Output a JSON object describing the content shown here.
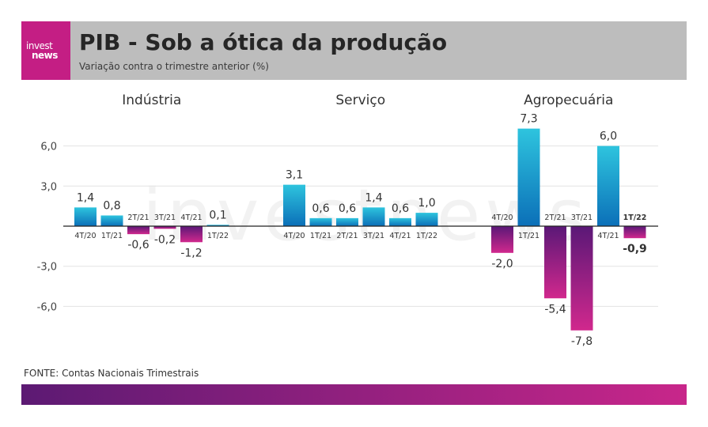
{
  "header": {
    "logo_line1": "invest",
    "logo_line2": "news",
    "title": "PIB - Sob a ótica da produção",
    "subtitle": "Variação contra o trimestre anterior (%)"
  },
  "watermark": "investnews",
  "source": "FONTE: Contas Nacionais Trimestrais",
  "colors": {
    "positive_top": "#2ec4de",
    "positive_bottom": "#0b6fb8",
    "negative_top": "#5a1877",
    "negative_bottom": "#d1288d"
  },
  "chart_data": {
    "type": "bar",
    "ylim": [
      -9,
      8
    ],
    "yticks": [
      6.0,
      3.0,
      -3.0,
      -6.0
    ],
    "ytick_labels": [
      "6,0",
      "3,0",
      "-3,0",
      "-6,0"
    ],
    "grid": true,
    "groups": [
      {
        "name": "Indústria",
        "categories": [
          "4T/20",
          "1T/21",
          "2T/21",
          "3T/21",
          "4T/21",
          "1T/22"
        ],
        "values": [
          1.4,
          0.8,
          -0.6,
          -0.2,
          -1.2,
          0.1
        ],
        "labels": [
          "1,4",
          "0,8",
          "-0,6",
          "-0,2",
          "-1,2",
          "0,1"
        ]
      },
      {
        "name": "Serviço",
        "categories": [
          "4T/20",
          "1T/21",
          "2T/21",
          "3T/21",
          "4T/21",
          "1T/22"
        ],
        "values": [
          3.1,
          0.6,
          0.6,
          1.4,
          0.6,
          1.0
        ],
        "labels": [
          "3,1",
          "0,6",
          "0,6",
          "1,4",
          "0,6",
          "1,0"
        ]
      },
      {
        "name": "Agropecuária",
        "categories": [
          "4T/20",
          "1T/21",
          "2T/21",
          "3T/21",
          "4T/21",
          "1T/22"
        ],
        "values": [
          -2.0,
          7.3,
          -5.4,
          -7.8,
          6.0,
          -0.9
        ],
        "labels": [
          "-2,0",
          "7,3",
          "-5,4",
          "-7,8",
          "6,0",
          "-0,9"
        ],
        "bold_last": true
      }
    ]
  }
}
